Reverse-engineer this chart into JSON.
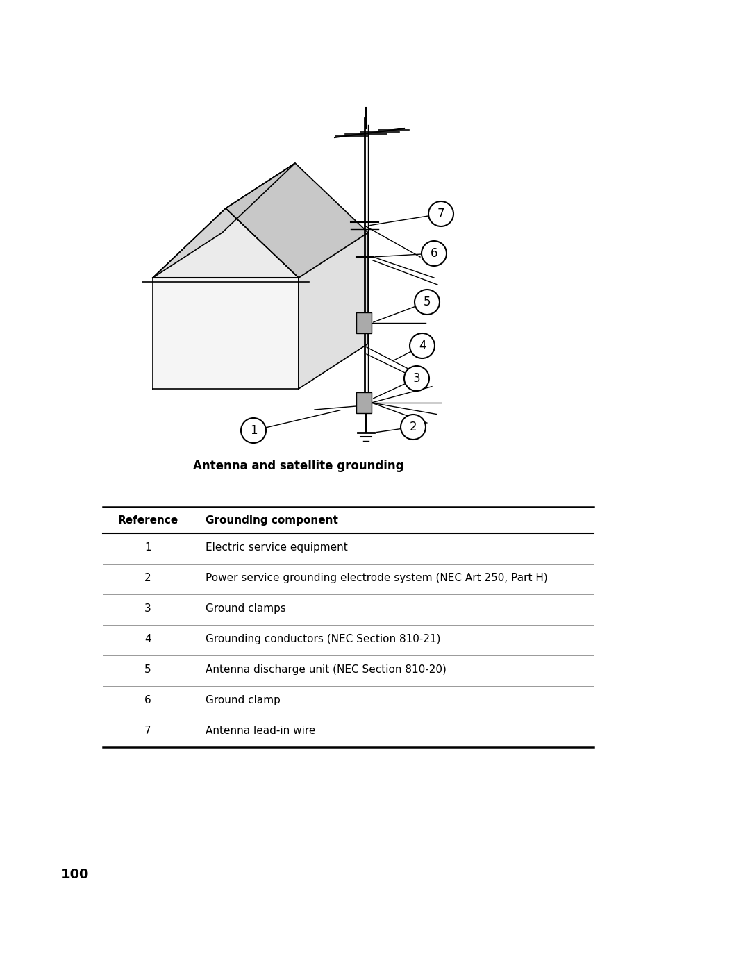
{
  "page_number": "100",
  "diagram_caption": "Antenna and satellite grounding",
  "table_header": [
    "Reference",
    "Grounding component"
  ],
  "table_rows": [
    [
      "1",
      "Electric service equipment"
    ],
    [
      "2",
      "Power service grounding electrode system (NEC Art 250, Part H)"
    ],
    [
      "3",
      "Ground clamps"
    ],
    [
      "4",
      "Grounding conductors (NEC Section 810-21)"
    ],
    [
      "5",
      "Antenna discharge unit (NEC Section 810-20)"
    ],
    [
      "6",
      "Ground clamp"
    ],
    [
      "7",
      "Antenna lead-in wire"
    ]
  ],
  "bg_color": "#ffffff",
  "text_color": "#000000",
  "line_color": "#000000"
}
